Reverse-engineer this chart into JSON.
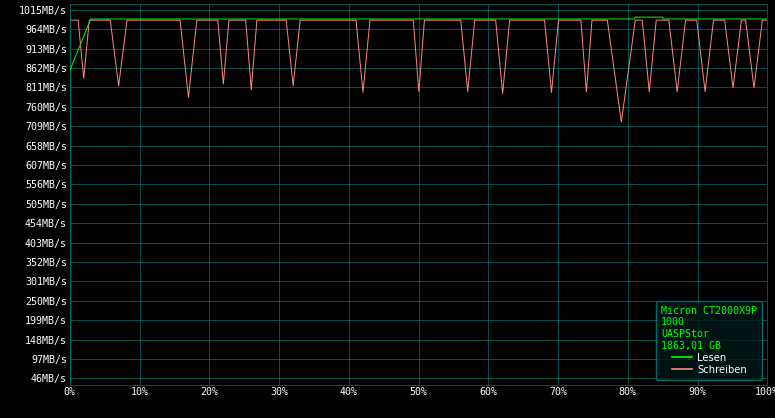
{
  "background_color": "#000000",
  "plot_bg_color": "#000000",
  "grid_color": "#007070",
  "text_color": "#ffffff",
  "read_color": "#00ff00",
  "write_color": "#ff8888",
  "yticks": [
    46,
    97,
    148,
    199,
    250,
    301,
    352,
    403,
    454,
    505,
    556,
    607,
    658,
    709,
    760,
    811,
    862,
    913,
    964,
    1015
  ],
  "ytick_labels": [
    "46MB/s",
    "97MB/s",
    "148MB/s",
    "199MB/s",
    "250MB/s",
    "301MB/s",
    "352MB/s",
    "403MB/s",
    "454MB/s",
    "505MB/s",
    "556MB/s",
    "607MB/s",
    "658MB/s",
    "709MB/s",
    "760MB/s",
    "811MB/s",
    "862MB/s",
    "913MB/s",
    "964MB/s",
    "1015MB/s"
  ],
  "xtick_labels": [
    "0%",
    "10%",
    "20%",
    "30%",
    "40%",
    "50%",
    "60%",
    "70%",
    "80%",
    "90%",
    "100%"
  ],
  "ylim": [
    30,
    1030
  ],
  "xlim": [
    0,
    100
  ],
  "legend_title": "Micron CT2000X9P\n1000\nUASPStor\n1863,01 GB",
  "legend_read": "Lesen",
  "legend_write": "Schreiben",
  "read_base": 991,
  "write_base": 988,
  "dip_positions": [
    2,
    7,
    17,
    22,
    26,
    32,
    42,
    50,
    57,
    62,
    69,
    74,
    79,
    83,
    87,
    91,
    95,
    98
  ],
  "dip_depths": [
    835,
    815,
    785,
    820,
    805,
    815,
    798,
    800,
    800,
    795,
    798,
    800,
    720,
    800,
    800,
    800,
    810,
    810
  ],
  "dip_half_widths": [
    0.8,
    1.2,
    1.2,
    0.8,
    0.8,
    1.0,
    1.0,
    0.8,
    1.0,
    1.0,
    1.0,
    0.8,
    2.0,
    1.0,
    1.2,
    1.2,
    1.2,
    1.2
  ]
}
